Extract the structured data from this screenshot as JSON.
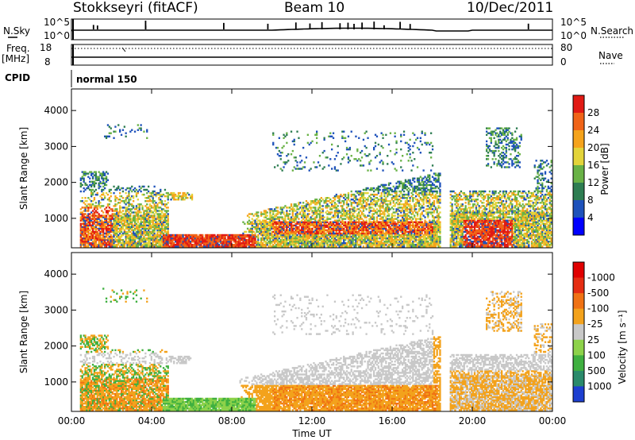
{
  "header": {
    "station": "Stokkseyri (fitACF)",
    "beam": "Beam 10",
    "date": "10/Dec/2011"
  },
  "top_panels": {
    "nsky_label": "N.Sky",
    "nsearch_label": "N.Search",
    "nsky_ticks": [
      "10^5",
      "10^0"
    ],
    "nsearch_ticks": [
      "10^5",
      "10^0"
    ],
    "freq_label": [
      "Freq.",
      "[MHz]"
    ],
    "freq_ticks": [
      "18",
      "8"
    ],
    "nave_label": "Nave",
    "nave_ticks": [
      "80",
      "0"
    ],
    "cpid_label": "CPID",
    "cpid_value": "normal 150"
  },
  "chart_data": [
    {
      "type": "heatmap",
      "name": "power-panel",
      "ylabel": "Slant Range [km]",
      "yticks": [
        "1000",
        "2000",
        "3000",
        "4000"
      ],
      "ylim": [
        180,
        4600
      ],
      "xlim": [
        0,
        24
      ],
      "xlabel": "",
      "colorbar": {
        "label": "Power [dB]",
        "tick_labels": [
          "4",
          "8",
          "12",
          "16",
          "20",
          "24",
          "28"
        ],
        "colors": [
          "#0000ff",
          "#1e52bb",
          "#2e7d52",
          "#69b246",
          "#e3d43a",
          "#f5a31c",
          "#f06418",
          "#e11a14"
        ]
      },
      "approx_regions": [
        {
          "t": [
            0.4,
            4.8
          ],
          "r": [
            300,
            2000
          ],
          "level": "medium-high"
        },
        {
          "t": [
            5.0,
            9.0
          ],
          "r": [
            350,
            520
          ],
          "level": "high"
        },
        {
          "t": [
            10.0,
            18.2
          ],
          "r": [
            400,
            2300
          ],
          "level": "medium"
        },
        {
          "t": [
            18.8,
            24.0
          ],
          "r": [
            350,
            1700
          ],
          "level": "medium-high"
        }
      ]
    },
    {
      "type": "heatmap",
      "name": "velocity-panel",
      "ylabel": "Slant Range [km]",
      "yticks": [
        "1000",
        "2000",
        "3000",
        "4000"
      ],
      "ylim": [
        180,
        4600
      ],
      "xlim": [
        0,
        24
      ],
      "xlabel": "Time UT",
      "xticks": [
        "00:00",
        "04:00",
        "08:00",
        "12:00",
        "16:00",
        "20:00",
        "00:00"
      ],
      "colorbar": {
        "label": "Velocity [m s⁻¹]",
        "tick_labels": [
          "1000",
          "500",
          "100",
          "25",
          "-25",
          "-100",
          "-500",
          "-1000"
        ],
        "colors": [
          "#1d3fd0",
          "#2a8a6b",
          "#3fb040",
          "#8dd24a",
          "#c8c8c8",
          "#f3a21c",
          "#f07214",
          "#e52d12",
          "#e00000"
        ]
      }
    }
  ]
}
